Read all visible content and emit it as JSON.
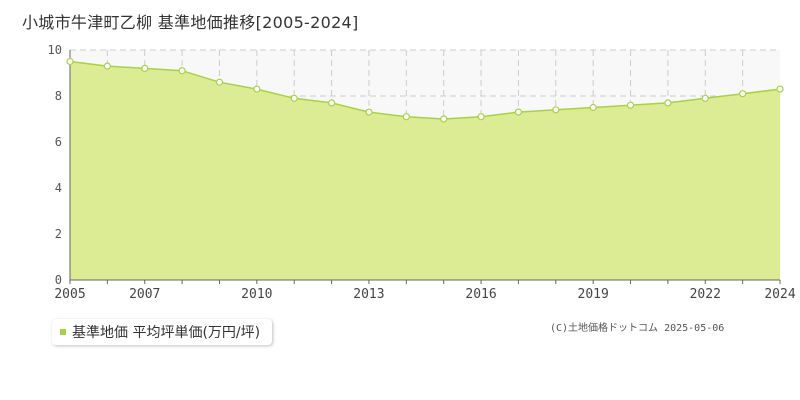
{
  "colors": {
    "area_fill": "#dbec94",
    "line": "#a9d146",
    "marker_fill": "#ffffff",
    "grid": "#cccccc",
    "plot_bg": "#f8f8f8",
    "axis": "#666666"
  },
  "chart_data": {
    "type": "area",
    "title": "小城市牛津町乙柳 基準地価推移[2005-2024]",
    "xlabel": "",
    "ylabel": "",
    "xlim": [
      2005,
      2024
    ],
    "ylim": [
      0,
      10
    ],
    "y_ticks": [
      0,
      2,
      4,
      6,
      8,
      10
    ],
    "x_tick_labels": [
      2005,
      2007,
      2010,
      2013,
      2016,
      2019,
      2022,
      2024
    ],
    "grid": true,
    "legend_position": "bottom-left",
    "series": [
      {
        "name": "基準地価 平均坪単価(万円/坪)",
        "x": [
          2005,
          2006,
          2007,
          2008,
          2009,
          2010,
          2011,
          2012,
          2013,
          2014,
          2015,
          2016,
          2017,
          2018,
          2019,
          2020,
          2021,
          2022,
          2023,
          2024
        ],
        "values": [
          9.5,
          9.3,
          9.2,
          9.1,
          8.6,
          8.3,
          7.9,
          7.7,
          7.3,
          7.1,
          7.0,
          7.1,
          7.3,
          7.4,
          7.5,
          7.6,
          7.7,
          7.9,
          8.1,
          8.3
        ]
      }
    ]
  },
  "legend": {
    "label": "基準地価 平均坪単価(万円/坪)"
  },
  "copyright": "(C)土地価格ドットコム 2025-05-06"
}
